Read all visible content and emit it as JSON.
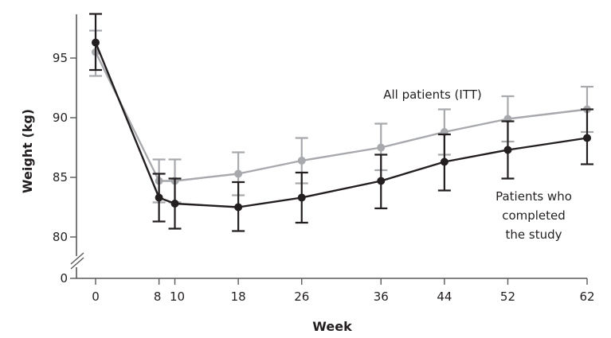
{
  "chart_data": {
    "type": "line",
    "title": "",
    "xlabel": "Week",
    "ylabel": "Weight (kg)",
    "x": [
      0,
      8,
      10,
      18,
      26,
      36,
      44,
      52,
      62
    ],
    "x_tick_labels": [
      "0",
      "8",
      "10",
      "18",
      "26",
      "36",
      "44",
      "52",
      "62"
    ],
    "y_ticks": [
      0,
      80,
      85,
      90,
      95
    ],
    "y_tick_labels": [
      "0",
      "80",
      "85",
      "90",
      "95"
    ],
    "ylim": [
      80,
      98.5
    ],
    "y_axis_break": true,
    "xlim": [
      -2.4,
      62
    ],
    "grid": false,
    "series": [
      {
        "name": "All patients (ITT)",
        "label_lines": [
          "All patients (ITT)"
        ],
        "color": "#a7a9ac",
        "values": [
          95.5,
          84.7,
          84.7,
          85.3,
          86.4,
          87.5,
          88.8,
          89.9,
          90.7
        ],
        "error_upper": [
          97.3,
          86.5,
          86.5,
          87.1,
          88.3,
          89.5,
          90.7,
          91.8,
          92.6
        ],
        "error_lower": [
          93.5,
          82.9,
          82.9,
          83.5,
          84.5,
          85.6,
          86.9,
          88.0,
          88.8
        ]
      },
      {
        "name": "Patients who completed the study",
        "label_lines": [
          "Patients who",
          "completed",
          "the study"
        ],
        "color": "#231f20",
        "values": [
          96.3,
          83.3,
          82.8,
          82.5,
          83.3,
          84.7,
          86.3,
          87.3,
          88.3
        ],
        "error_upper": [
          98.7,
          85.3,
          84.9,
          84.6,
          85.4,
          86.9,
          88.6,
          89.7,
          90.7
        ],
        "error_lower": [
          94.0,
          81.3,
          80.7,
          80.5,
          81.2,
          82.4,
          83.9,
          84.9,
          86.1
        ]
      }
    ]
  }
}
